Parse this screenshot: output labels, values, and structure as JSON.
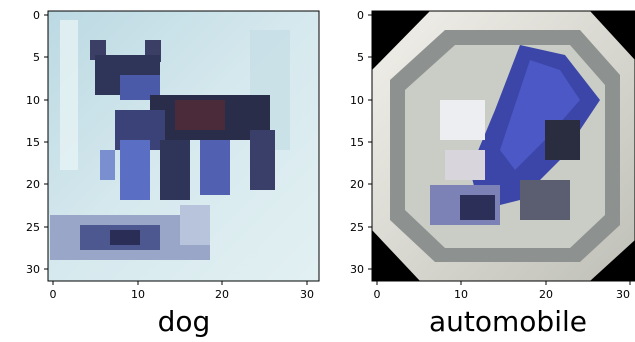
{
  "panels": [
    {
      "caption": "dog",
      "x_ticks": [
        "0",
        "10",
        "20",
        "30"
      ],
      "y_ticks": [
        "0",
        "5",
        "10",
        "15",
        "20",
        "25",
        "30"
      ],
      "image_description": "pixelated 32x32 image of a dark dog on a pale blue background"
    },
    {
      "caption": "automobile",
      "x_ticks": [
        "0",
        "10",
        "20",
        "30"
      ],
      "y_ticks": [
        "0",
        "5",
        "10",
        "15",
        "20",
        "25",
        "30"
      ],
      "image_description": "pixelated 32x32 image of a blue car inside an octagonal white frame on black"
    }
  ],
  "colors": {
    "dog_bg": "#cfe3ea",
    "dog_body": "#2f3558",
    "dog_accent": "#5a6fc4",
    "car_bg": "#000000",
    "car_frame": "#e8e6e0",
    "car_body": "#3c46a8"
  }
}
